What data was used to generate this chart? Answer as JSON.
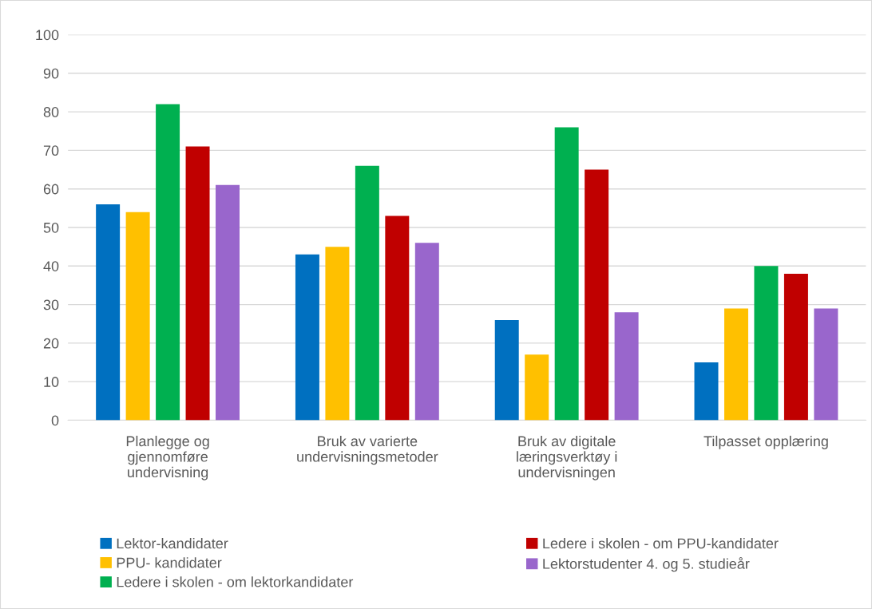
{
  "chart_data": {
    "type": "bar",
    "categories": [
      "Planlegge og gjennomføre undervisning",
      "Bruk av varierte undervisningsmetoder",
      "Bruk av digitale læringsverktøy i undervisningen",
      "Tilpasset opplæring"
    ],
    "series": [
      {
        "name": "Lektor-kandidater",
        "color": "#0070c0",
        "values": [
          56,
          43,
          26,
          15
        ]
      },
      {
        "name": "PPU- kandidater",
        "color": "#ffc000",
        "values": [
          54,
          45,
          17,
          29
        ]
      },
      {
        "name": "Ledere i skolen - om lektorkandidater",
        "color": "#00b050",
        "values": [
          82,
          66,
          76,
          40
        ]
      },
      {
        "name": "Ledere i skolen - om PPU-kandidater",
        "color": "#c00000",
        "values": [
          71,
          53,
          65,
          38
        ]
      },
      {
        "name": "Lektorstudenter 4. og 5. studieår",
        "color": "#9966cc",
        "values": [
          61,
          46,
          28,
          29
        ]
      }
    ],
    "ylim": [
      0,
      100
    ],
    "yticks": [
      0,
      10,
      20,
      30,
      40,
      50,
      60,
      70,
      80,
      90,
      100
    ],
    "grid": "y",
    "legend": "bottom"
  }
}
